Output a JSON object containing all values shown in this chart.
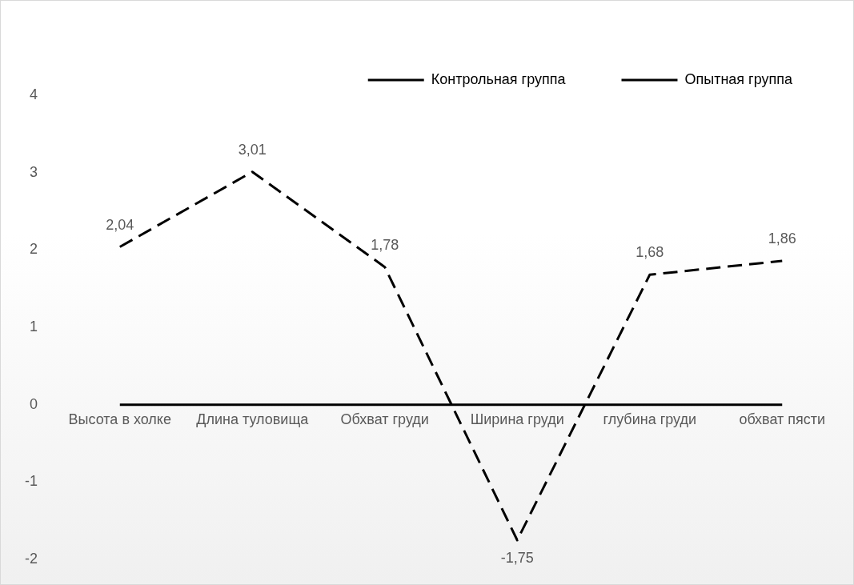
{
  "chart_data": {
    "type": "line",
    "categories": [
      "Высота в холке",
      "Длина туловища",
      "Обхват груди",
      "Ширина груди",
      "глубина груди",
      "обхват пясти"
    ],
    "series": [
      {
        "name": "Контрольная группа",
        "color": "#000000",
        "line_style": "solid",
        "values": [
          0,
          0,
          0,
          0,
          0,
          0
        ]
      },
      {
        "name": "Опытная группа",
        "color": "#000000",
        "line_style": "dashed",
        "values": [
          2.04,
          3.01,
          1.78,
          -1.75,
          1.68,
          1.86
        ],
        "value_labels": [
          "2,04",
          "3,01",
          "1,78",
          "-1,75",
          "1,68",
          "1,86"
        ]
      }
    ],
    "ylim": [
      -2,
      4
    ],
    "yticks": [
      -2,
      -1,
      0,
      1,
      2,
      3,
      4
    ],
    "grid": false,
    "legend": "top right",
    "marker": "none"
  }
}
